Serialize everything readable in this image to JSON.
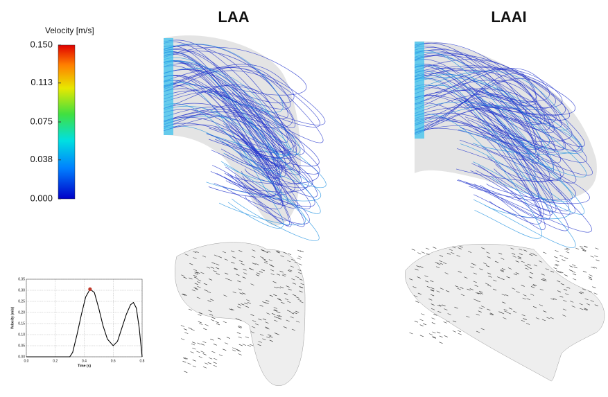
{
  "colorbar": {
    "title": "Velocity [m/s]",
    "range": [
      0,
      0.15
    ],
    "ticks": [
      {
        "value": 0.15,
        "label": "0.150"
      },
      {
        "value": 0.113,
        "label": "0.113"
      },
      {
        "value": 0.075,
        "label": "0.075"
      },
      {
        "value": 0.038,
        "label": "0.038"
      },
      {
        "value": 0,
        "label": "0.000"
      }
    ]
  },
  "panels": [
    {
      "title": "LAA"
    },
    {
      "title": "LAAI"
    }
  ],
  "chart_data": {
    "type": "line",
    "x_label": "Time (s)",
    "y_label": "Velocity (m/s)",
    "x": [
      0,
      0.1,
      0.2,
      0.3,
      0.32,
      0.35,
      0.38,
      0.41,
      0.44,
      0.47,
      0.5,
      0.53,
      0.56,
      0.6,
      0.63,
      0.66,
      0.69,
      0.72,
      0.74,
      0.76,
      0.78,
      0.8
    ],
    "values": [
      0,
      0,
      0,
      0,
      0.02,
      0.1,
      0.19,
      0.27,
      0.305,
      0.29,
      0.22,
      0.14,
      0.08,
      0.05,
      0.07,
      0.13,
      0.19,
      0.235,
      0.245,
      0.22,
      0.13,
      0
    ],
    "color": "#000000",
    "highlight": {
      "x": 0.44,
      "y": 0.305,
      "color": "#c0392b"
    },
    "xlim": [
      0,
      0.8
    ],
    "ylim": [
      0,
      0.35
    ],
    "xticks": [
      {
        "value": 0,
        "label": "0.0"
      },
      {
        "value": 0.2,
        "label": "0.2"
      },
      {
        "value": 0.4,
        "label": "0.4"
      },
      {
        "value": 0.6,
        "label": "0.6"
      },
      {
        "value": 0.8,
        "label": "0.8"
      }
    ],
    "yticks": [
      {
        "value": 0,
        "label": "0.00"
      },
      {
        "value": 0.05,
        "label": "0.05"
      },
      {
        "value": 0.1,
        "label": "0.10"
      },
      {
        "value": 0.15,
        "label": "0.15"
      },
      {
        "value": 0.2,
        "label": "0.20"
      },
      {
        "value": 0.25,
        "label": "0.25"
      },
      {
        "value": 0.3,
        "label": "0.30"
      },
      {
        "value": 0.35,
        "label": "0.35"
      }
    ],
    "grid": true
  }
}
